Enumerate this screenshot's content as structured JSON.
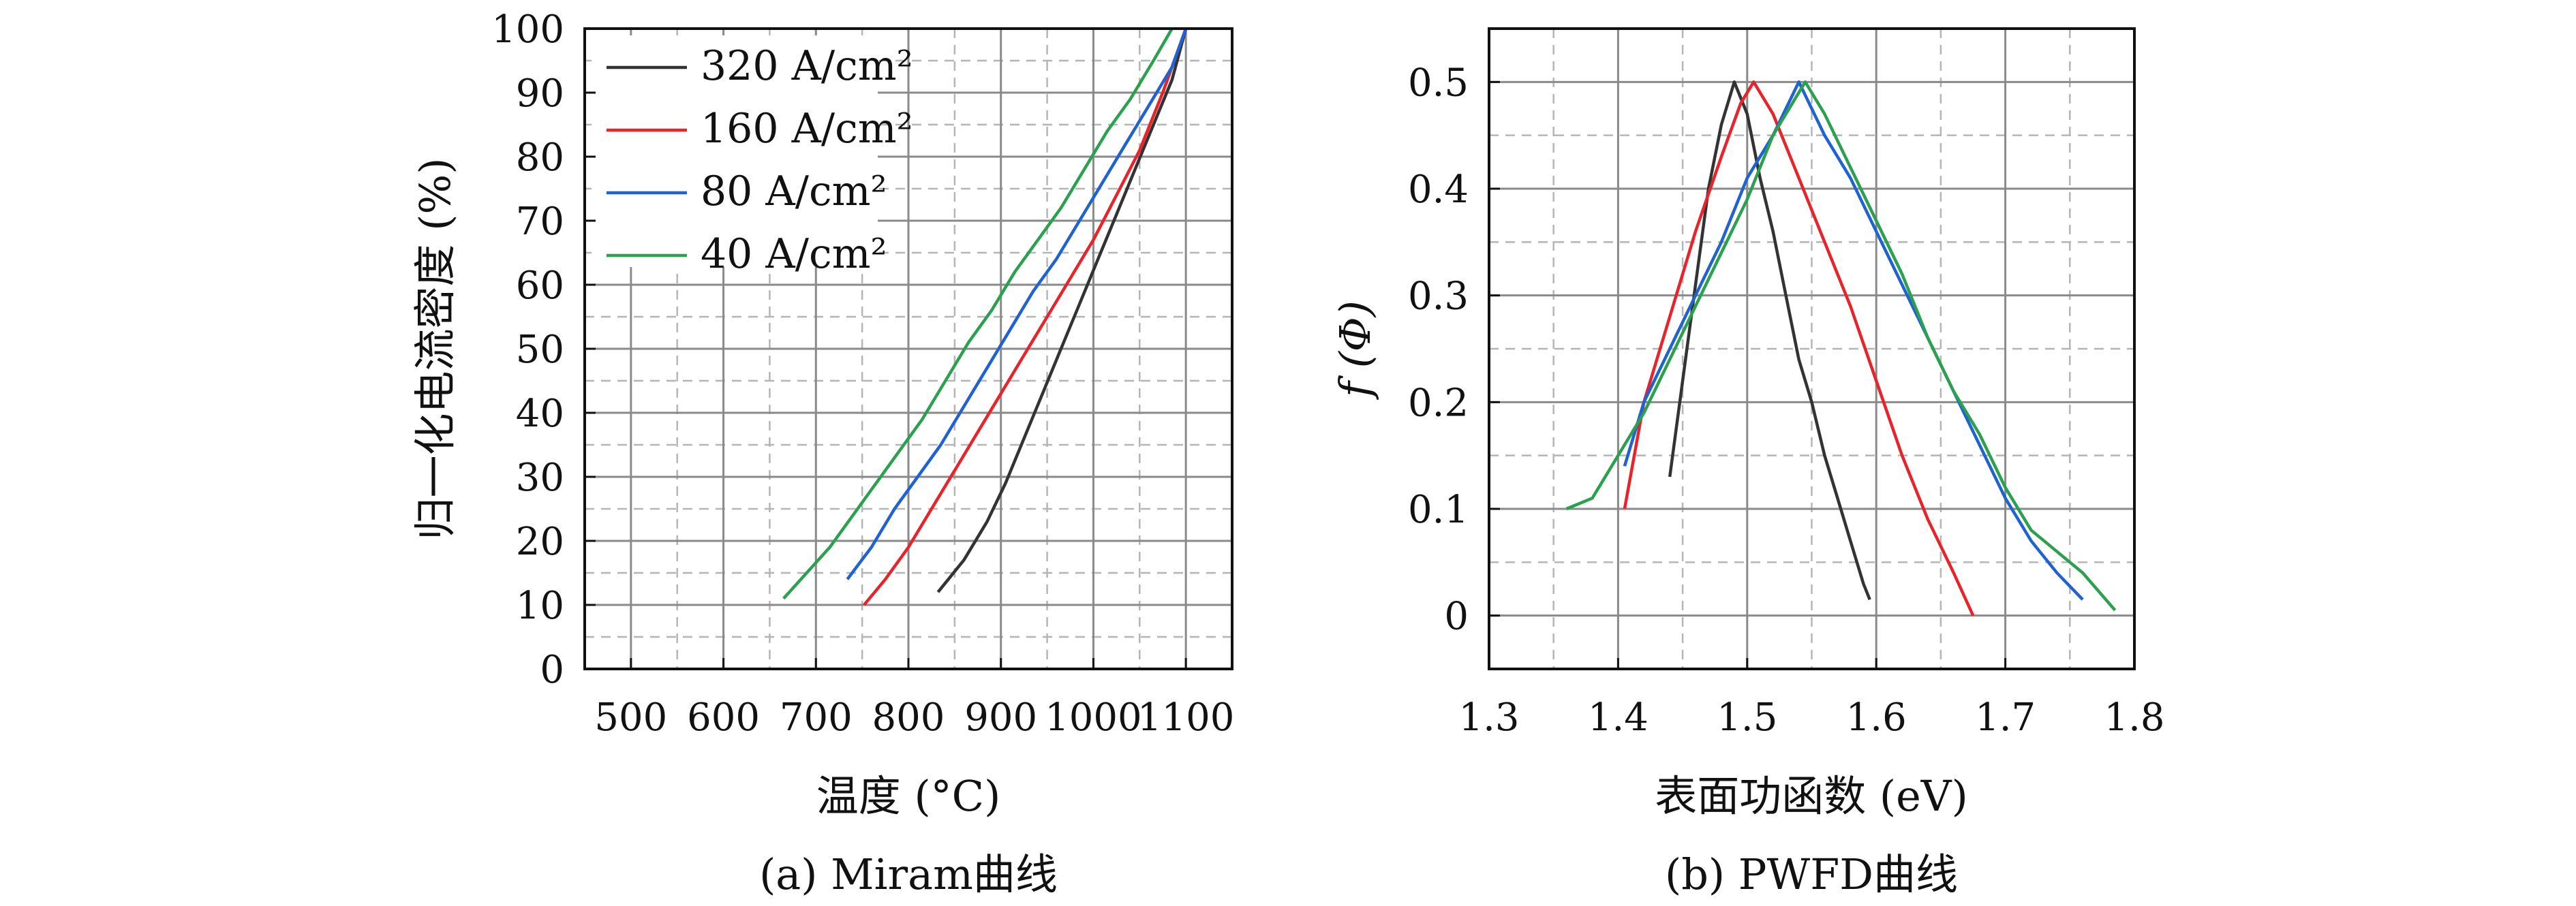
{
  "chart_data": [
    {
      "type": "line",
      "caption": "(a) Miram曲线",
      "xlabel": "温度 (°C)",
      "ylabel": "归一化电流密度 (%)",
      "xlim": [
        450,
        1150
      ],
      "ylim": [
        0,
        100
      ],
      "xticks": [
        500,
        600,
        700,
        800,
        900,
        1000,
        1100
      ],
      "yticks": [
        0,
        10,
        20,
        30,
        40,
        50,
        60,
        70,
        80,
        90,
        100
      ],
      "grid": true,
      "legend_position": "top-left",
      "series": [
        {
          "name": "320 A/cm²",
          "color": "#333333",
          "x": [
            832,
            860,
            885,
            905,
            925,
            945,
            965,
            985,
            1005,
            1025,
            1045,
            1065,
            1085,
            1100
          ],
          "y": [
            12,
            17,
            23,
            29,
            36,
            43,
            50,
            57,
            64,
            71,
            78,
            85,
            92,
            100
          ]
        },
        {
          "name": "160 A/cm²",
          "color": "#e8242a",
          "x": [
            752,
            775,
            800,
            825,
            850,
            875,
            900,
            925,
            950,
            975,
            1000,
            1025,
            1050,
            1075,
            1100
          ],
          "y": [
            10,
            14,
            19,
            25,
            31,
            37,
            43,
            49,
            55,
            61,
            67,
            74,
            81,
            90,
            100
          ]
        },
        {
          "name": "80 A/cm²",
          "color": "#1f63d3",
          "x": [
            734,
            760,
            785,
            810,
            835,
            860,
            885,
            910,
            935,
            960,
            985,
            1010,
            1035,
            1060,
            1085,
            1100
          ],
          "y": [
            14,
            19,
            25,
            30,
            35,
            41,
            47,
            53,
            59,
            64,
            70,
            76,
            82,
            88,
            94,
            100
          ]
        },
        {
          "name": "40 A/cm²",
          "color": "#2ba04f",
          "x": [
            665,
            690,
            715,
            740,
            765,
            790,
            815,
            840,
            865,
            890,
            915,
            940,
            965,
            990,
            1015,
            1040,
            1065,
            1085
          ],
          "y": [
            11,
            15,
            19,
            24,
            29,
            34,
            39,
            45,
            51,
            56,
            62,
            67,
            72,
            78,
            84,
            89,
            95,
            100
          ]
        }
      ]
    },
    {
      "type": "line",
      "caption": "(b) PWFD曲线",
      "xlabel": "表面功函数 (eV)",
      "ylabel": "f (Φ)",
      "xlim": [
        1.3,
        1.8
      ],
      "ylim": [
        -0.05,
        0.55
      ],
      "xticks": [
        1.3,
        1.4,
        1.5,
        1.6,
        1.7,
        1.8
      ],
      "yticks": [
        0,
        0.1,
        0.2,
        0.3,
        0.4,
        0.5
      ],
      "grid": true,
      "series": [
        {
          "color": "#333333",
          "x": [
            1.44,
            1.45,
            1.46,
            1.47,
            1.48,
            1.49,
            1.5,
            1.51,
            1.52,
            1.53,
            1.54,
            1.55,
            1.56,
            1.57,
            1.58,
            1.59,
            1.595
          ],
          "y": [
            0.13,
            0.22,
            0.31,
            0.4,
            0.46,
            0.5,
            0.47,
            0.41,
            0.36,
            0.3,
            0.24,
            0.2,
            0.15,
            0.11,
            0.07,
            0.03,
            0.015
          ]
        },
        {
          "color": "#e8242a",
          "x": [
            1.405,
            1.42,
            1.44,
            1.46,
            1.48,
            1.495,
            1.505,
            1.52,
            1.54,
            1.56,
            1.58,
            1.6,
            1.62,
            1.64,
            1.66,
            1.675
          ],
          "y": [
            0.1,
            0.2,
            0.28,
            0.36,
            0.43,
            0.48,
            0.5,
            0.47,
            0.41,
            0.35,
            0.29,
            0.22,
            0.15,
            0.09,
            0.04,
            0.0
          ]
        },
        {
          "color": "#1f63d3",
          "x": [
            1.405,
            1.42,
            1.44,
            1.46,
            1.48,
            1.5,
            1.52,
            1.54,
            1.56,
            1.58,
            1.6,
            1.62,
            1.64,
            1.66,
            1.68,
            1.7,
            1.72,
            1.74,
            1.76
          ],
          "y": [
            0.14,
            0.2,
            0.25,
            0.3,
            0.35,
            0.41,
            0.45,
            0.5,
            0.45,
            0.41,
            0.36,
            0.31,
            0.26,
            0.21,
            0.16,
            0.11,
            0.07,
            0.04,
            0.015
          ]
        },
        {
          "color": "#2ba04f",
          "x": [
            1.36,
            1.38,
            1.4,
            1.42,
            1.44,
            1.46,
            1.48,
            1.5,
            1.52,
            1.545,
            1.56,
            1.58,
            1.6,
            1.62,
            1.64,
            1.66,
            1.68,
            1.7,
            1.72,
            1.74,
            1.76,
            1.785
          ],
          "y": [
            0.1,
            0.11,
            0.15,
            0.19,
            0.24,
            0.29,
            0.34,
            0.39,
            0.45,
            0.5,
            0.47,
            0.42,
            0.37,
            0.32,
            0.26,
            0.21,
            0.17,
            0.12,
            0.08,
            0.06,
            0.04,
            0.005
          ]
        }
      ]
    }
  ]
}
